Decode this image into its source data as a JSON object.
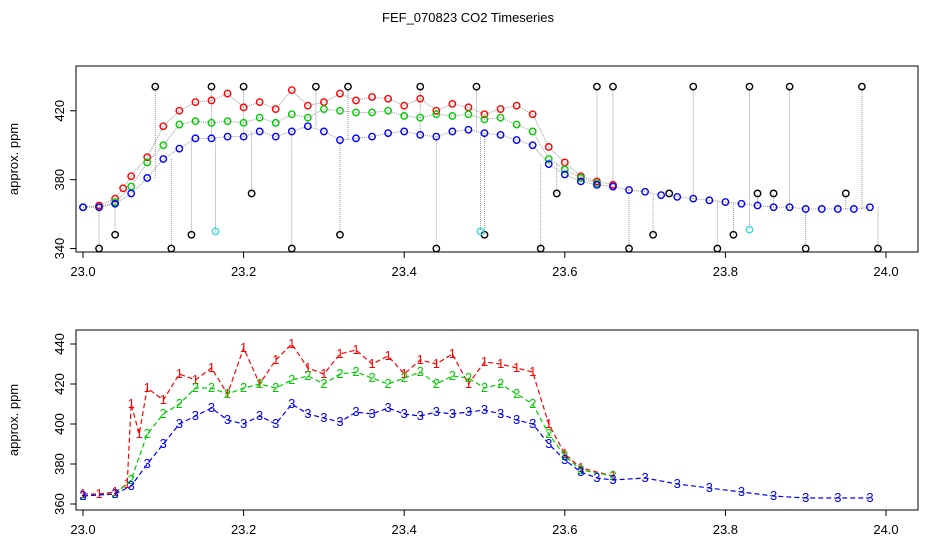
{
  "chart_data": [
    {
      "type": "scatter",
      "title": "FEF_070823  CO2 Timeseries",
      "ylabel": "approx. ppm",
      "xlabel": "",
      "xlim": [
        23.0,
        24.0
      ],
      "ylim": [
        338,
        446
      ],
      "xticks": [
        "23.0",
        "23.2",
        "23.4",
        "23.6",
        "23.8",
        "24.0"
      ],
      "yticks": [
        "340",
        "380",
        "420"
      ],
      "grid": false,
      "colors": {
        "red": "#ff0000",
        "green": "#00cc00",
        "blue": "#0000ff",
        "black": "#000000",
        "cyan": "#33dddd",
        "line": "#999999"
      },
      "series": [
        {
          "color": "red",
          "x": [
            23.0,
            23.02,
            23.04,
            23.05,
            23.06,
            23.08,
            23.1,
            23.12,
            23.14,
            23.16,
            23.18,
            23.2,
            23.22,
            23.24,
            23.26,
            23.28,
            23.3,
            23.32,
            23.34,
            23.36,
            23.38,
            23.4,
            23.42,
            23.44,
            23.46,
            23.48,
            23.5,
            23.52,
            23.54,
            23.56,
            23.58,
            23.6,
            23.62,
            23.64,
            23.66
          ],
          "y": [
            364,
            365,
            369,
            375,
            382,
            393,
            411,
            420,
            425,
            426,
            430,
            422,
            425,
            421,
            432,
            423,
            425,
            430,
            426,
            428,
            427,
            423,
            427,
            420,
            424,
            422,
            418,
            421,
            423,
            418,
            399,
            390,
            382,
            379,
            377
          ]
        },
        {
          "color": "green",
          "x": [
            23.0,
            23.02,
            23.04,
            23.06,
            23.08,
            23.1,
            23.12,
            23.14,
            23.16,
            23.18,
            23.2,
            23.22,
            23.24,
            23.26,
            23.28,
            23.3,
            23.32,
            23.34,
            23.36,
            23.38,
            23.4,
            23.42,
            23.44,
            23.46,
            23.48,
            23.5,
            23.52,
            23.54,
            23.56,
            23.58,
            23.6,
            23.62,
            23.64
          ],
          "y": [
            364,
            364,
            367,
            376,
            390,
            400,
            412,
            414,
            413,
            414,
            413,
            416,
            413,
            418,
            416,
            421,
            420,
            419,
            419,
            420,
            417,
            416,
            418,
            417,
            418,
            415,
            416,
            412,
            408,
            392,
            386,
            381,
            378
          ]
        },
        {
          "color": "blue",
          "x": [
            23.0,
            23.02,
            23.04,
            23.06,
            23.08,
            23.1,
            23.12,
            23.14,
            23.16,
            23.18,
            23.2,
            23.22,
            23.24,
            23.26,
            23.28,
            23.3,
            23.32,
            23.34,
            23.36,
            23.38,
            23.4,
            23.42,
            23.44,
            23.46,
            23.48,
            23.5,
            23.52,
            23.54,
            23.56,
            23.58,
            23.6,
            23.62,
            23.64,
            23.66,
            23.68,
            23.7,
            23.72,
            23.74,
            23.76,
            23.78,
            23.8,
            23.82,
            23.84,
            23.86,
            23.88,
            23.9,
            23.92,
            23.94,
            23.96,
            23.98
          ],
          "y": [
            364,
            364,
            366,
            372,
            381,
            392,
            398,
            404,
            404,
            405,
            405,
            408,
            405,
            408,
            411,
            408,
            403,
            404,
            405,
            407,
            408,
            406,
            405,
            408,
            409,
            407,
            406,
            403,
            400,
            389,
            383,
            379,
            377,
            376,
            374,
            373,
            371,
            370,
            369,
            368,
            367,
            366,
            365,
            364,
            364,
            363,
            363,
            363,
            363,
            364
          ]
        },
        {
          "color": "black",
          "x": [
            23.02,
            23.04,
            23.09,
            23.11,
            23.135,
            23.16,
            23.2,
            23.21,
            23.26,
            23.29,
            23.32,
            23.33,
            23.42,
            23.44,
            23.49,
            23.5,
            23.57,
            23.59,
            23.64,
            23.66,
            23.68,
            23.71,
            23.73,
            23.76,
            23.79,
            23.81,
            23.83,
            23.84,
            23.86,
            23.88,
            23.9,
            23.95,
            23.97,
            23.99
          ],
          "y": [
            340,
            348,
            434,
            340,
            348,
            434,
            434,
            372,
            340,
            434,
            348,
            434,
            434,
            340,
            434,
            348,
            340,
            372,
            434,
            434,
            340,
            348,
            372,
            434,
            340,
            348,
            434,
            372,
            372,
            434,
            340,
            372,
            434,
            340
          ]
        },
        {
          "color": "cyan",
          "x": [
            23.165,
            23.495,
            23.83
          ],
          "y": [
            350,
            350,
            351
          ]
        }
      ]
    },
    {
      "type": "line",
      "ylabel": "approx. ppm",
      "xlabel": "",
      "xlim": [
        23.0,
        24.0
      ],
      "ylim": [
        357,
        447
      ],
      "xticks": [
        "23.0",
        "23.2",
        "23.4",
        "23.6",
        "23.8",
        "24.0"
      ],
      "yticks": [
        "360",
        "380",
        "400",
        "420",
        "440"
      ],
      "grid": false,
      "series": [
        {
          "name": "1",
          "color": "red",
          "x": [
            23.0,
            23.02,
            23.04,
            23.055,
            23.06,
            23.07,
            23.08,
            23.1,
            23.12,
            23.14,
            23.16,
            23.18,
            23.2,
            23.22,
            23.24,
            23.26,
            23.28,
            23.3,
            23.32,
            23.34,
            23.36,
            23.38,
            23.4,
            23.42,
            23.44,
            23.46,
            23.48,
            23.5,
            23.52,
            23.54,
            23.56,
            23.58,
            23.6,
            23.62,
            23.66
          ],
          "y": [
            365,
            365,
            366,
            370,
            410,
            395,
            418,
            412,
            425,
            422,
            428,
            415,
            438,
            420,
            432,
            440,
            428,
            425,
            435,
            437,
            430,
            434,
            425,
            432,
            430,
            435,
            420,
            431,
            430,
            428,
            426,
            400,
            385,
            378,
            374
          ]
        },
        {
          "name": "2",
          "color": "green",
          "x": [
            23.0,
            23.04,
            23.06,
            23.08,
            23.1,
            23.12,
            23.14,
            23.16,
            23.18,
            23.2,
            23.22,
            23.24,
            23.26,
            23.28,
            23.3,
            23.32,
            23.34,
            23.36,
            23.38,
            23.4,
            23.42,
            23.44,
            23.46,
            23.48,
            23.5,
            23.52,
            23.54,
            23.56,
            23.58,
            23.6,
            23.62,
            23.66
          ],
          "y": [
            364,
            365,
            372,
            395,
            405,
            410,
            418,
            418,
            415,
            418,
            420,
            418,
            422,
            424,
            420,
            425,
            426,
            423,
            420,
            423,
            426,
            420,
            424,
            423,
            418,
            420,
            415,
            410,
            395,
            384,
            377,
            374
          ]
        },
        {
          "name": "3",
          "color": "blue",
          "x": [
            23.0,
            23.04,
            23.06,
            23.08,
            23.1,
            23.12,
            23.14,
            23.16,
            23.18,
            23.2,
            23.22,
            23.24,
            23.26,
            23.28,
            23.3,
            23.32,
            23.34,
            23.36,
            23.38,
            23.4,
            23.42,
            23.44,
            23.46,
            23.48,
            23.5,
            23.52,
            23.54,
            23.56,
            23.58,
            23.6,
            23.62,
            23.64,
            23.66,
            23.7,
            23.74,
            23.78,
            23.82,
            23.86,
            23.9,
            23.94,
            23.98
          ],
          "y": [
            364,
            365,
            369,
            380,
            390,
            400,
            404,
            408,
            402,
            400,
            404,
            400,
            410,
            405,
            403,
            401,
            406,
            405,
            408,
            405,
            404,
            406,
            405,
            406,
            407,
            405,
            402,
            400,
            390,
            382,
            376,
            373,
            372,
            373,
            370,
            368,
            366,
            364,
            363,
            363,
            363
          ]
        }
      ]
    }
  ]
}
